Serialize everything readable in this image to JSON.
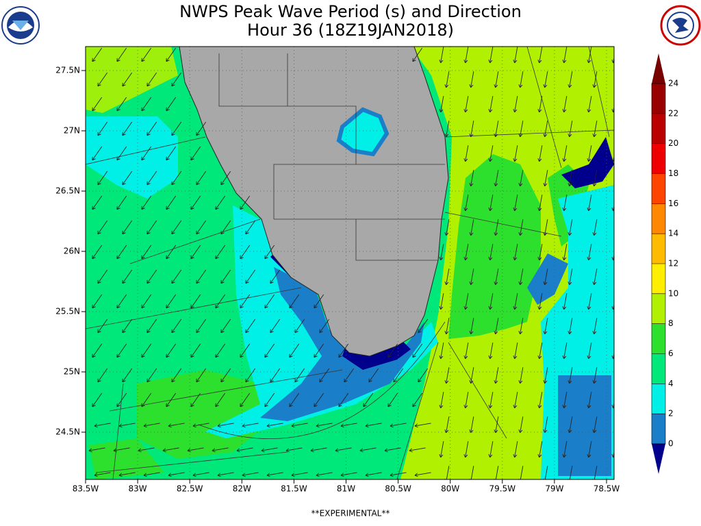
{
  "header": {
    "title": "NWPS Peak Wave Period (s) and Direction",
    "subtitle": "Hour 36 (18Z19JAN2018)"
  },
  "map": {
    "lat_labels": [
      "27.5N",
      "27N",
      "26.5N",
      "26N",
      "25.5N",
      "25N",
      "24.5N"
    ],
    "lon_labels": [
      "83.5W",
      "83W",
      "82.5W",
      "82W",
      "81.5W",
      "81W",
      "80.5W",
      "80W",
      "79.5W",
      "79W",
      "78.5W"
    ]
  },
  "colorbar": {
    "ticks": [
      0,
      2,
      4,
      6,
      8,
      10,
      12,
      14,
      16,
      18,
      20,
      22,
      24
    ],
    "colors": [
      "#00008c",
      "#1a7ec9",
      "#00f0e8",
      "#00e87a",
      "#2ee02e",
      "#b0f000",
      "#ffee00",
      "#ffbb00",
      "#ff8800",
      "#ff4400",
      "#ee0000",
      "#bb0000",
      "#990000",
      "#770000"
    ]
  },
  "footer": {
    "note": "**EXPERIMENTAL**"
  }
}
